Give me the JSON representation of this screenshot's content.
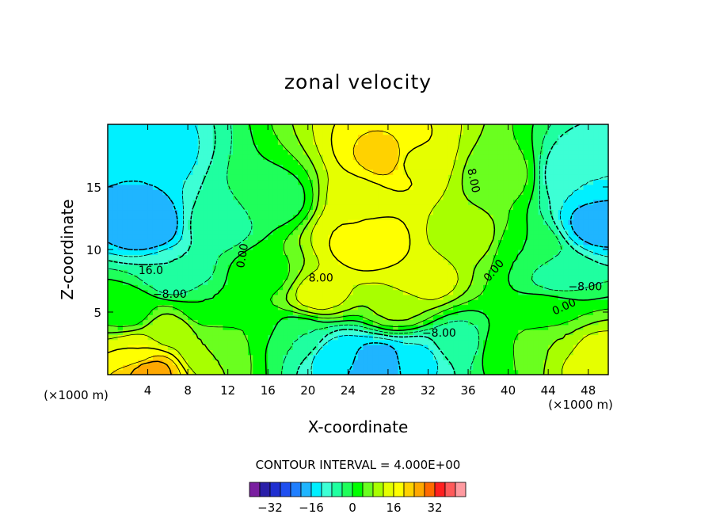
{
  "chart_data": {
    "type": "heatmap",
    "title": "zonal velocity",
    "xlabel": "X-coordinate",
    "ylabel": "Z-coordinate",
    "x_unit_left": "(×1000 m)",
    "x_unit_right": "(×1000 m)",
    "xlim": [
      0,
      50
    ],
    "ylim": [
      0,
      20
    ],
    "x_ticks": [
      4,
      8,
      12,
      16,
      20,
      24,
      28,
      32,
      36,
      40,
      44,
      48
    ],
    "y_ticks": [
      5,
      10,
      15
    ],
    "contour_interval_text": "CONTOUR INTERVAL = 4.000E+00",
    "contour_interval": 4,
    "colorbar": {
      "levels": [
        -36,
        -32,
        -28,
        -24,
        -20,
        -16,
        -12,
        -8,
        -4,
        0,
        4,
        8,
        12,
        16,
        20,
        24,
        28,
        32,
        36,
        40
      ],
      "tick_values": [
        -32,
        -16,
        0,
        16,
        32
      ],
      "tick_labels": [
        "−32",
        "−16",
        "0",
        "16",
        "32"
      ],
      "colors": [
        "#7a1fa0",
        "#2a1fa8",
        "#1f2fd0",
        "#1f4ff0",
        "#1f7fff",
        "#1fb5ff",
        "#00f0ff",
        "#3dffd5",
        "#1fffa0",
        "#1fff5a",
        "#00ff00",
        "#6aff1f",
        "#a8ff00",
        "#e5ff00",
        "#ffff00",
        "#ffd200",
        "#ffa800",
        "#ff6a00",
        "#ff1f1f",
        "#ff5a5a",
        "#ff9aa0"
      ]
    },
    "features": [
      {
        "x": 4,
        "y": 12,
        "value": -20
      },
      {
        "x": 3,
        "y": 17.5,
        "value": -16
      },
      {
        "x": 49,
        "y": 12,
        "value": -18
      },
      {
        "x": 47,
        "y": 16,
        "value": -12
      },
      {
        "x": 7,
        "y": 8,
        "value": -8
      },
      {
        "x": 11,
        "y": 12,
        "value": -6
      },
      {
        "x": 16,
        "y": 8,
        "value": 3
      },
      {
        "x": 17,
        "y": 14,
        "value": -2
      },
      {
        "x": 14,
        "y": 4,
        "value": 4
      },
      {
        "x": 25,
        "y": 14,
        "value": 14
      },
      {
        "x": 30.5,
        "y": 17,
        "value": 15
      },
      {
        "x": 28,
        "y": 17.3,
        "value": 22
      },
      {
        "x": 26,
        "y": 10.5,
        "value": 20
      },
      {
        "x": 24.5,
        "y": 11.5,
        "value": 16
      },
      {
        "x": 31,
        "y": 7.6,
        "value": 16
      },
      {
        "x": 21,
        "y": 6.5,
        "value": 14
      },
      {
        "x": 29,
        "y": 5.5,
        "value": 9
      },
      {
        "x": 36,
        "y": 11,
        "value": 10
      },
      {
        "x": 39,
        "y": 16,
        "value": 6
      },
      {
        "x": 42,
        "y": 10,
        "value": 0
      },
      {
        "x": 44,
        "y": 5,
        "value": 2
      },
      {
        "x": 45,
        "y": 8,
        "value": -6
      },
      {
        "x": 23,
        "y": 1.5,
        "value": -15
      },
      {
        "x": 27,
        "y": 0.9,
        "value": -20
      },
      {
        "x": 31,
        "y": 1.2,
        "value": -13
      },
      {
        "x": 35,
        "y": 2.5,
        "value": -6
      },
      {
        "x": 19,
        "y": 3,
        "value": -4
      },
      {
        "x": 3,
        "y": 1.8,
        "value": 16
      },
      {
        "x": 4.2,
        "y": 0.4,
        "value": 26
      },
      {
        "x": 6,
        "y": 3.5,
        "value": 10
      },
      {
        "x": 10,
        "y": 2,
        "value": 8
      },
      {
        "x": 48,
        "y": 1.5,
        "value": 16
      },
      {
        "x": 45,
        "y": 2.5,
        "value": 8
      },
      {
        "x": 40,
        "y": 2,
        "value": 4
      },
      {
        "x": 2,
        "y": 5,
        "value": 2
      },
      {
        "x": 10,
        "y": 5.5,
        "value": 0
      }
    ],
    "contour_labels": [
      {
        "text": "0.00",
        "x": 13.5,
        "y": 9.5,
        "angle": -80
      },
      {
        "text": "16.0",
        "x": 4.3,
        "y": 8.3,
        "angle": 0
      },
      {
        "text": "−8.00",
        "x": 6.2,
        "y": 6.4,
        "angle": 0
      },
      {
        "text": "8.00",
        "x": 21.3,
        "y": 7.7,
        "angle": 0
      },
      {
        "text": "8.00",
        "x": 36.5,
        "y": 15.5,
        "angle": 78
      },
      {
        "text": "0.00",
        "x": 38.6,
        "y": 8.3,
        "angle": -50
      },
      {
        "text": "−8.00",
        "x": 47.7,
        "y": 7.0,
        "angle": 0
      },
      {
        "text": "0.00",
        "x": 45.6,
        "y": 5.4,
        "angle": -25
      },
      {
        "text": "−8.00",
        "x": 33.1,
        "y": 3.3,
        "angle": 0
      }
    ]
  }
}
